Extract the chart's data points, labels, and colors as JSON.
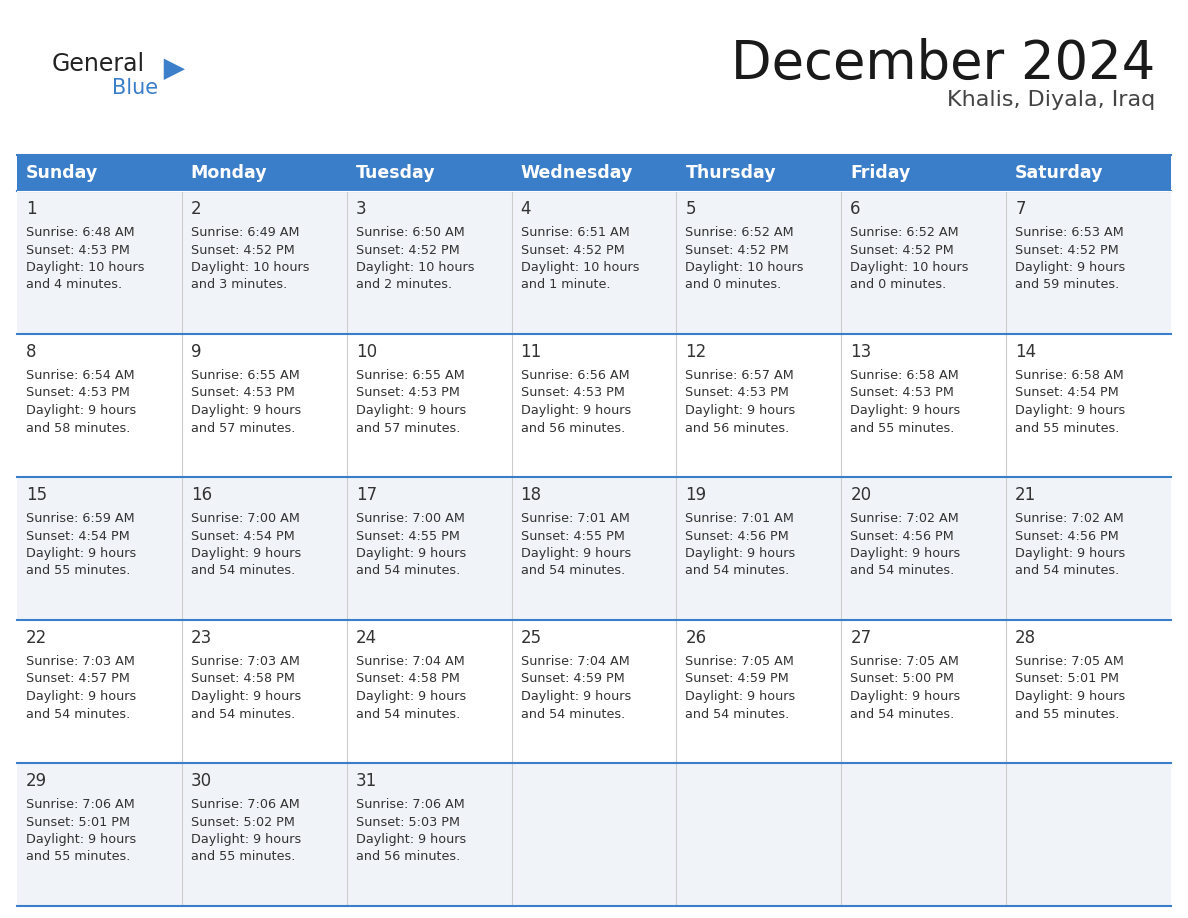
{
  "title": "December 2024",
  "subtitle": "Khalis, Diyala, Iraq",
  "header_bg_color": "#3A7DC9",
  "header_text_color": "#FFFFFF",
  "day_names": [
    "Sunday",
    "Monday",
    "Tuesday",
    "Wednesday",
    "Thursday",
    "Friday",
    "Saturday"
  ],
  "row_bg_even": "#F0F4F8",
  "row_bg_odd": "#FFFFFF",
  "cell_border_color": "#3A7DC9",
  "cell_text_color": "#333333",
  "logo_general_color": "#222222",
  "logo_blue_color": "#3A7DC9",
  "calendar_data": [
    [
      {
        "day": 1,
        "sunrise": "6:48 AM",
        "sunset": "4:53 PM",
        "daylight": "10 hours and 4 minutes."
      },
      {
        "day": 2,
        "sunrise": "6:49 AM",
        "sunset": "4:52 PM",
        "daylight": "10 hours and 3 minutes."
      },
      {
        "day": 3,
        "sunrise": "6:50 AM",
        "sunset": "4:52 PM",
        "daylight": "10 hours and 2 minutes."
      },
      {
        "day": 4,
        "sunrise": "6:51 AM",
        "sunset": "4:52 PM",
        "daylight": "10 hours and 1 minute."
      },
      {
        "day": 5,
        "sunrise": "6:52 AM",
        "sunset": "4:52 PM",
        "daylight": "10 hours and 0 minutes."
      },
      {
        "day": 6,
        "sunrise": "6:52 AM",
        "sunset": "4:52 PM",
        "daylight": "10 hours and 0 minutes."
      },
      {
        "day": 7,
        "sunrise": "6:53 AM",
        "sunset": "4:52 PM",
        "daylight": "9 hours and 59 minutes."
      }
    ],
    [
      {
        "day": 8,
        "sunrise": "6:54 AM",
        "sunset": "4:53 PM",
        "daylight": "9 hours and 58 minutes."
      },
      {
        "day": 9,
        "sunrise": "6:55 AM",
        "sunset": "4:53 PM",
        "daylight": "9 hours and 57 minutes."
      },
      {
        "day": 10,
        "sunrise": "6:55 AM",
        "sunset": "4:53 PM",
        "daylight": "9 hours and 57 minutes."
      },
      {
        "day": 11,
        "sunrise": "6:56 AM",
        "sunset": "4:53 PM",
        "daylight": "9 hours and 56 minutes."
      },
      {
        "day": 12,
        "sunrise": "6:57 AM",
        "sunset": "4:53 PM",
        "daylight": "9 hours and 56 minutes."
      },
      {
        "day": 13,
        "sunrise": "6:58 AM",
        "sunset": "4:53 PM",
        "daylight": "9 hours and 55 minutes."
      },
      {
        "day": 14,
        "sunrise": "6:58 AM",
        "sunset": "4:54 PM",
        "daylight": "9 hours and 55 minutes."
      }
    ],
    [
      {
        "day": 15,
        "sunrise": "6:59 AM",
        "sunset": "4:54 PM",
        "daylight": "9 hours and 55 minutes."
      },
      {
        "day": 16,
        "sunrise": "7:00 AM",
        "sunset": "4:54 PM",
        "daylight": "9 hours and 54 minutes."
      },
      {
        "day": 17,
        "sunrise": "7:00 AM",
        "sunset": "4:55 PM",
        "daylight": "9 hours and 54 minutes."
      },
      {
        "day": 18,
        "sunrise": "7:01 AM",
        "sunset": "4:55 PM",
        "daylight": "9 hours and 54 minutes."
      },
      {
        "day": 19,
        "sunrise": "7:01 AM",
        "sunset": "4:56 PM",
        "daylight": "9 hours and 54 minutes."
      },
      {
        "day": 20,
        "sunrise": "7:02 AM",
        "sunset": "4:56 PM",
        "daylight": "9 hours and 54 minutes."
      },
      {
        "day": 21,
        "sunrise": "7:02 AM",
        "sunset": "4:56 PM",
        "daylight": "9 hours and 54 minutes."
      }
    ],
    [
      {
        "day": 22,
        "sunrise": "7:03 AM",
        "sunset": "4:57 PM",
        "daylight": "9 hours and 54 minutes."
      },
      {
        "day": 23,
        "sunrise": "7:03 AM",
        "sunset": "4:58 PM",
        "daylight": "9 hours and 54 minutes."
      },
      {
        "day": 24,
        "sunrise": "7:04 AM",
        "sunset": "4:58 PM",
        "daylight": "9 hours and 54 minutes."
      },
      {
        "day": 25,
        "sunrise": "7:04 AM",
        "sunset": "4:59 PM",
        "daylight": "9 hours and 54 minutes."
      },
      {
        "day": 26,
        "sunrise": "7:05 AM",
        "sunset": "4:59 PM",
        "daylight": "9 hours and 54 minutes."
      },
      {
        "day": 27,
        "sunrise": "7:05 AM",
        "sunset": "5:00 PM",
        "daylight": "9 hours and 54 minutes."
      },
      {
        "day": 28,
        "sunrise": "7:05 AM",
        "sunset": "5:01 PM",
        "daylight": "9 hours and 55 minutes."
      }
    ],
    [
      {
        "day": 29,
        "sunrise": "7:06 AM",
        "sunset": "5:01 PM",
        "daylight": "9 hours and 55 minutes."
      },
      {
        "day": 30,
        "sunrise": "7:06 AM",
        "sunset": "5:02 PM",
        "daylight": "9 hours and 55 minutes."
      },
      {
        "day": 31,
        "sunrise": "7:06 AM",
        "sunset": "5:03 PM",
        "daylight": "9 hours and 56 minutes."
      },
      null,
      null,
      null,
      null
    ]
  ]
}
